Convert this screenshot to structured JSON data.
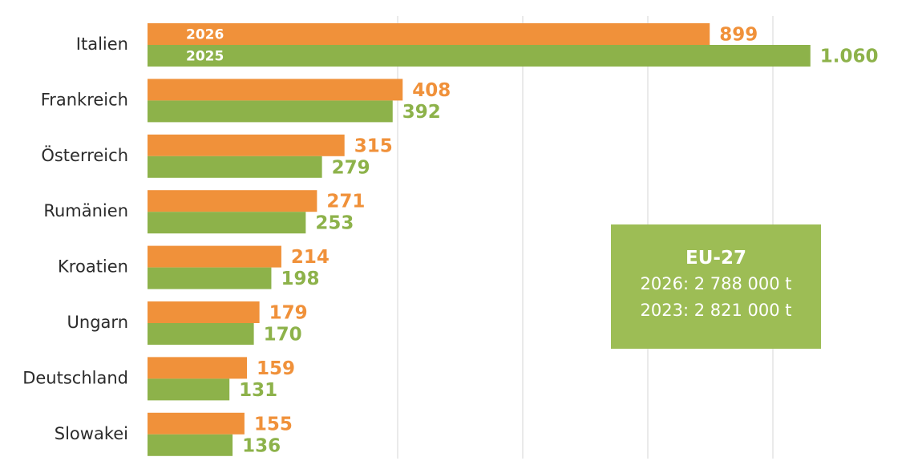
{
  "chart_data": {
    "type": "bar",
    "orientation": "horizontal",
    "categories": [
      "Italien",
      "Frankreich",
      "Österreich",
      "Rumänien",
      "Kroatien",
      "Ungarn",
      "Deutschland",
      "Slowakei"
    ],
    "series": [
      {
        "name": "2026",
        "color": "#f0913a",
        "values": [
          899,
          408,
          315,
          271,
          214,
          179,
          159,
          155
        ],
        "labels": [
          "899",
          "408",
          "315",
          "271",
          "214",
          "179",
          "159",
          "155"
        ]
      },
      {
        "name": "2025",
        "color": "#8db24a",
        "values": [
          1060,
          392,
          279,
          253,
          198,
          170,
          131,
          136
        ],
        "labels": [
          "1.060",
          "392",
          "279",
          "253",
          "198",
          "170",
          "131",
          "136"
        ]
      }
    ],
    "xlim": [
      0,
      1200
    ],
    "grid": true,
    "legend": "inside-first-bars"
  },
  "info_box": {
    "title": "EU-27",
    "line1": "2026: 2 788 000 t",
    "line2": "2023: 2 821 000 t",
    "color": "#9dbd55"
  }
}
